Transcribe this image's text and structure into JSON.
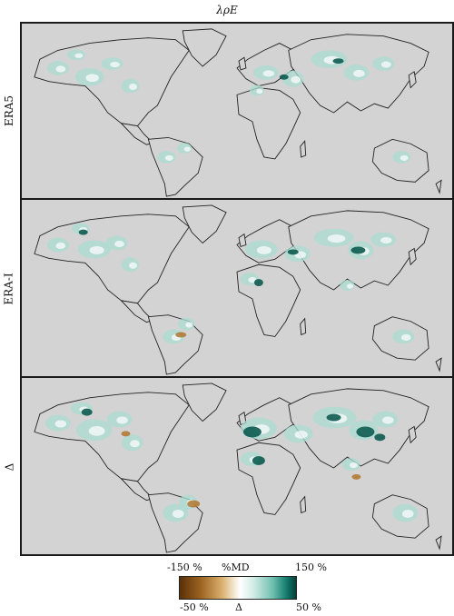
{
  "title": "λρE",
  "panels": [
    {
      "label": "ERA5"
    },
    {
      "label": "ERA-I"
    },
    {
      "label": "Δ"
    }
  ],
  "colorbar": {
    "top_left": "-150 %",
    "top_mid": "%MD",
    "top_right": "150 %",
    "bottom_left": "-50 %",
    "bottom_mid": "Δ",
    "bottom_right": "50 %",
    "colors": [
      "#5a3008",
      "#9c6320",
      "#d9ae6c",
      "#f7eedd",
      "#ffffff",
      "#cfeae4",
      "#6fc0b0",
      "#137a6d",
      "#063f37"
    ]
  },
  "style": {
    "ocean": "#d3d3d3",
    "coast": "#222222"
  }
}
